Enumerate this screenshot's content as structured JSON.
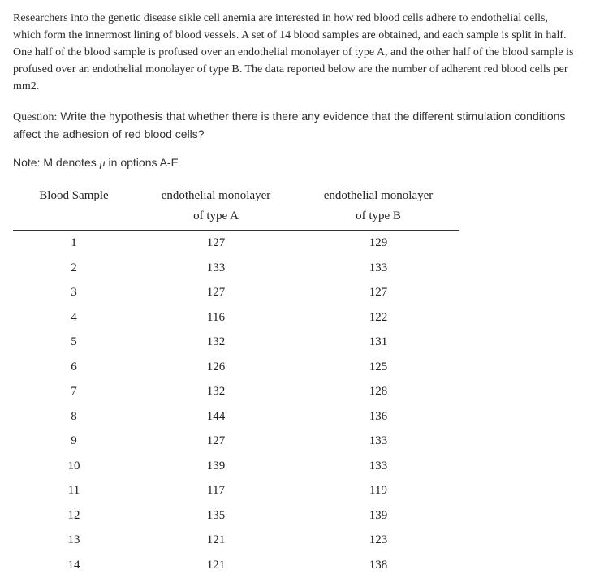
{
  "intro": "Researchers into the genetic disease sikle cell anemia are interested in how red blood cells adhere to endothelial cells, which form the innermost lining of blood vessels. A set of 14 blood samples are obtained, and each sample is split in half. One half of the blood sample is profused over an endothelial monolayer of type A, and the other half of the blood sample is profused over an endothelial monolayer of type B. The data reported below are the number of adherent red blood cells per mm2.",
  "question_label": "Question:",
  "question_text": "Write the hypothesis that whether there is there any evidence that the different stimulation conditions affect the adhesion of red blood cells?",
  "note_prefix": "Note: M denotes ",
  "note_mu": "μ",
  "note_suffix": " in options A-E",
  "table": {
    "headers": {
      "col1": "Blood Sample",
      "col2_line1": "endothelial monolayer",
      "col2_line2": "of type A",
      "col3_line1": "endothelial monolayer",
      "col3_line2": "of type B"
    },
    "rows": [
      {
        "n": "1",
        "a": "127",
        "b": "129"
      },
      {
        "n": "2",
        "a": "133",
        "b": "133"
      },
      {
        "n": "3",
        "a": "127",
        "b": "127"
      },
      {
        "n": "4",
        "a": "116",
        "b": "122"
      },
      {
        "n": "5",
        "a": "132",
        "b": "131"
      },
      {
        "n": "6",
        "a": "126",
        "b": "125"
      },
      {
        "n": "7",
        "a": "132",
        "b": "128"
      },
      {
        "n": "8",
        "a": "144",
        "b": "136"
      },
      {
        "n": "9",
        "a": "127",
        "b": "133"
      },
      {
        "n": "10",
        "a": "139",
        "b": "133"
      },
      {
        "n": "11",
        "a": "117",
        "b": "119"
      },
      {
        "n": "12",
        "a": "135",
        "b": "139"
      },
      {
        "n": "13",
        "a": "121",
        "b": "123"
      },
      {
        "n": "14",
        "a": "121",
        "b": "138"
      }
    ]
  }
}
